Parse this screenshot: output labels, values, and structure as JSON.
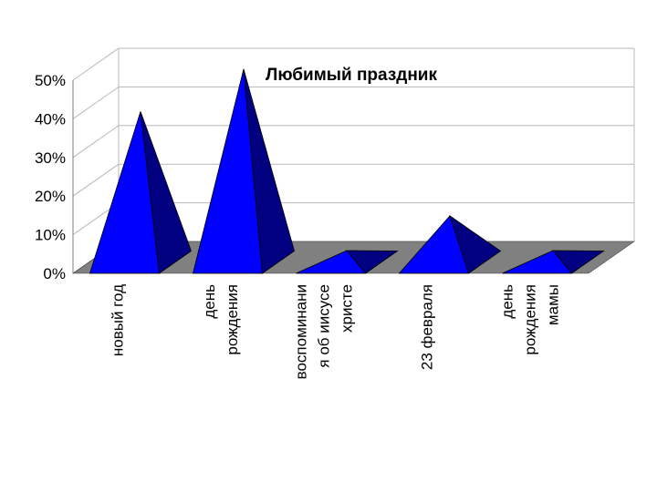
{
  "chart_data": {
    "type": "bar",
    "style": "3d-pyramid",
    "title": "Любимый праздник",
    "xlabel": "",
    "ylabel": "",
    "ylim": [
      0,
      0.5
    ],
    "yticks": [
      "0%",
      "10%",
      "20%",
      "30%",
      "40%",
      "50%"
    ],
    "categories": [
      [
        "новый год"
      ],
      [
        "день",
        "рождения"
      ],
      [
        "воспоминани",
        "я об иисусе",
        "христе"
      ],
      [
        "23 февраля"
      ],
      [
        "день",
        "рождения",
        "мамы"
      ]
    ],
    "values": [
      0.39,
      0.5,
      0.03,
      0.12,
      0.03
    ],
    "grid": true,
    "legend": "none",
    "colors": {
      "front": "#0000ff",
      "side": "#000080",
      "floor": "#808080",
      "grid": "#b8b8b8",
      "axis": "#808080"
    }
  }
}
